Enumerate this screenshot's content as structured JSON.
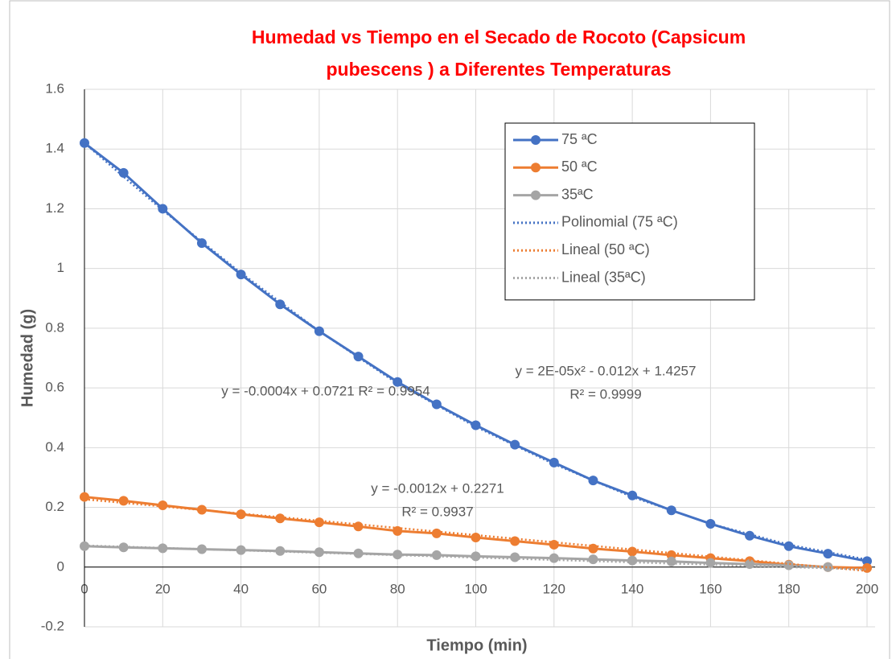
{
  "chart_data": {
    "type": "scatter",
    "title": [
      "Humedad  vs Tiempo  en el Secado de Rocoto (Capsicum",
      "pubescens ) a Diferentes Temperaturas"
    ],
    "x_label": "Tiempo (min)",
    "y_label": "Humedad (g)",
    "xlim": [
      0,
      200
    ],
    "ylim": [
      -0.2,
      1.6
    ],
    "xticks": [
      0,
      20,
      40,
      60,
      80,
      100,
      120,
      140,
      160,
      180,
      200
    ],
    "yticks": [
      -0.2,
      0,
      0.2,
      0.4,
      0.6,
      0.8,
      1,
      1.2,
      1.4,
      1.6
    ],
    "grid": true,
    "legend": "upper right",
    "series": [
      {
        "name": "75 ªC",
        "color": "#4472c4",
        "markers": true,
        "x": [
          0,
          10,
          20,
          30,
          40,
          50,
          60,
          70,
          80,
          90,
          100,
          110,
          120,
          130,
          140,
          150,
          160,
          170,
          180,
          190,
          200
        ],
        "values": [
          1.42,
          1.32,
          1.2,
          1.085,
          0.98,
          0.88,
          0.79,
          0.705,
          0.62,
          0.545,
          0.475,
          0.41,
          0.35,
          0.29,
          0.24,
          0.19,
          0.145,
          0.105,
          0.07,
          0.045,
          0.02
        ]
      },
      {
        "name": "50 ªC",
        "color": "#ed7d31",
        "markers": true,
        "x": [
          0,
          10,
          20,
          30,
          40,
          50,
          60,
          70,
          80,
          90,
          100,
          110,
          120,
          130,
          140,
          150,
          160,
          170,
          180,
          190,
          200
        ],
        "values": [
          0.235,
          0.222,
          0.207,
          0.192,
          0.177,
          0.163,
          0.15,
          0.136,
          0.121,
          0.113,
          0.099,
          0.087,
          0.075,
          0.062,
          0.052,
          0.04,
          0.03,
          0.02,
          0.008,
          0,
          -0.003
        ]
      },
      {
        "name": "35ªC",
        "color": "#a5a5a5",
        "markers": true,
        "x": [
          0,
          10,
          20,
          30,
          40,
          50,
          60,
          70,
          80,
          90,
          100,
          110,
          120,
          130,
          140,
          150,
          160,
          170,
          180,
          190,
          200
        ],
        "values": [
          0.07,
          0.066,
          0.063,
          0.06,
          0.057,
          0.054,
          0.05,
          0.046,
          0.042,
          0.04,
          0.036,
          0.033,
          0.03,
          0.026,
          0.022,
          0.019,
          0.014,
          0.01,
          0.006,
          0,
          null
        ]
      },
      {
        "name": "Polinomial (75 ªC)",
        "color": "#4472c4",
        "dotted": true,
        "x": [
          0,
          20,
          40,
          60,
          80,
          100,
          120,
          140,
          160,
          180,
          200
        ],
        "values": [
          1.42,
          1.195,
          0.985,
          0.79,
          0.615,
          0.47,
          0.345,
          0.235,
          0.145,
          0.075,
          0.025
        ]
      },
      {
        "name": "Lineal (50 ªC)",
        "color": "#ed7d31",
        "dotted": true,
        "x": [
          0,
          200
        ],
        "values": [
          0.2271,
          -0.0129
        ]
      },
      {
        "name": "Lineal (35ªC)",
        "color": "#a5a5a5",
        "dotted": true,
        "x": [
          0,
          200
        ],
        "values": [
          0.0721,
          -0.0079
        ]
      }
    ],
    "annotations": [
      "y = -0.0004x + 0.0721    R² = 0.9954",
      "y = 2E-05x² - 0.012x + 1.4257",
      "R² = 0.9999",
      "y = -0.0012x + 0.2271",
      "R² = 0.9937"
    ]
  }
}
